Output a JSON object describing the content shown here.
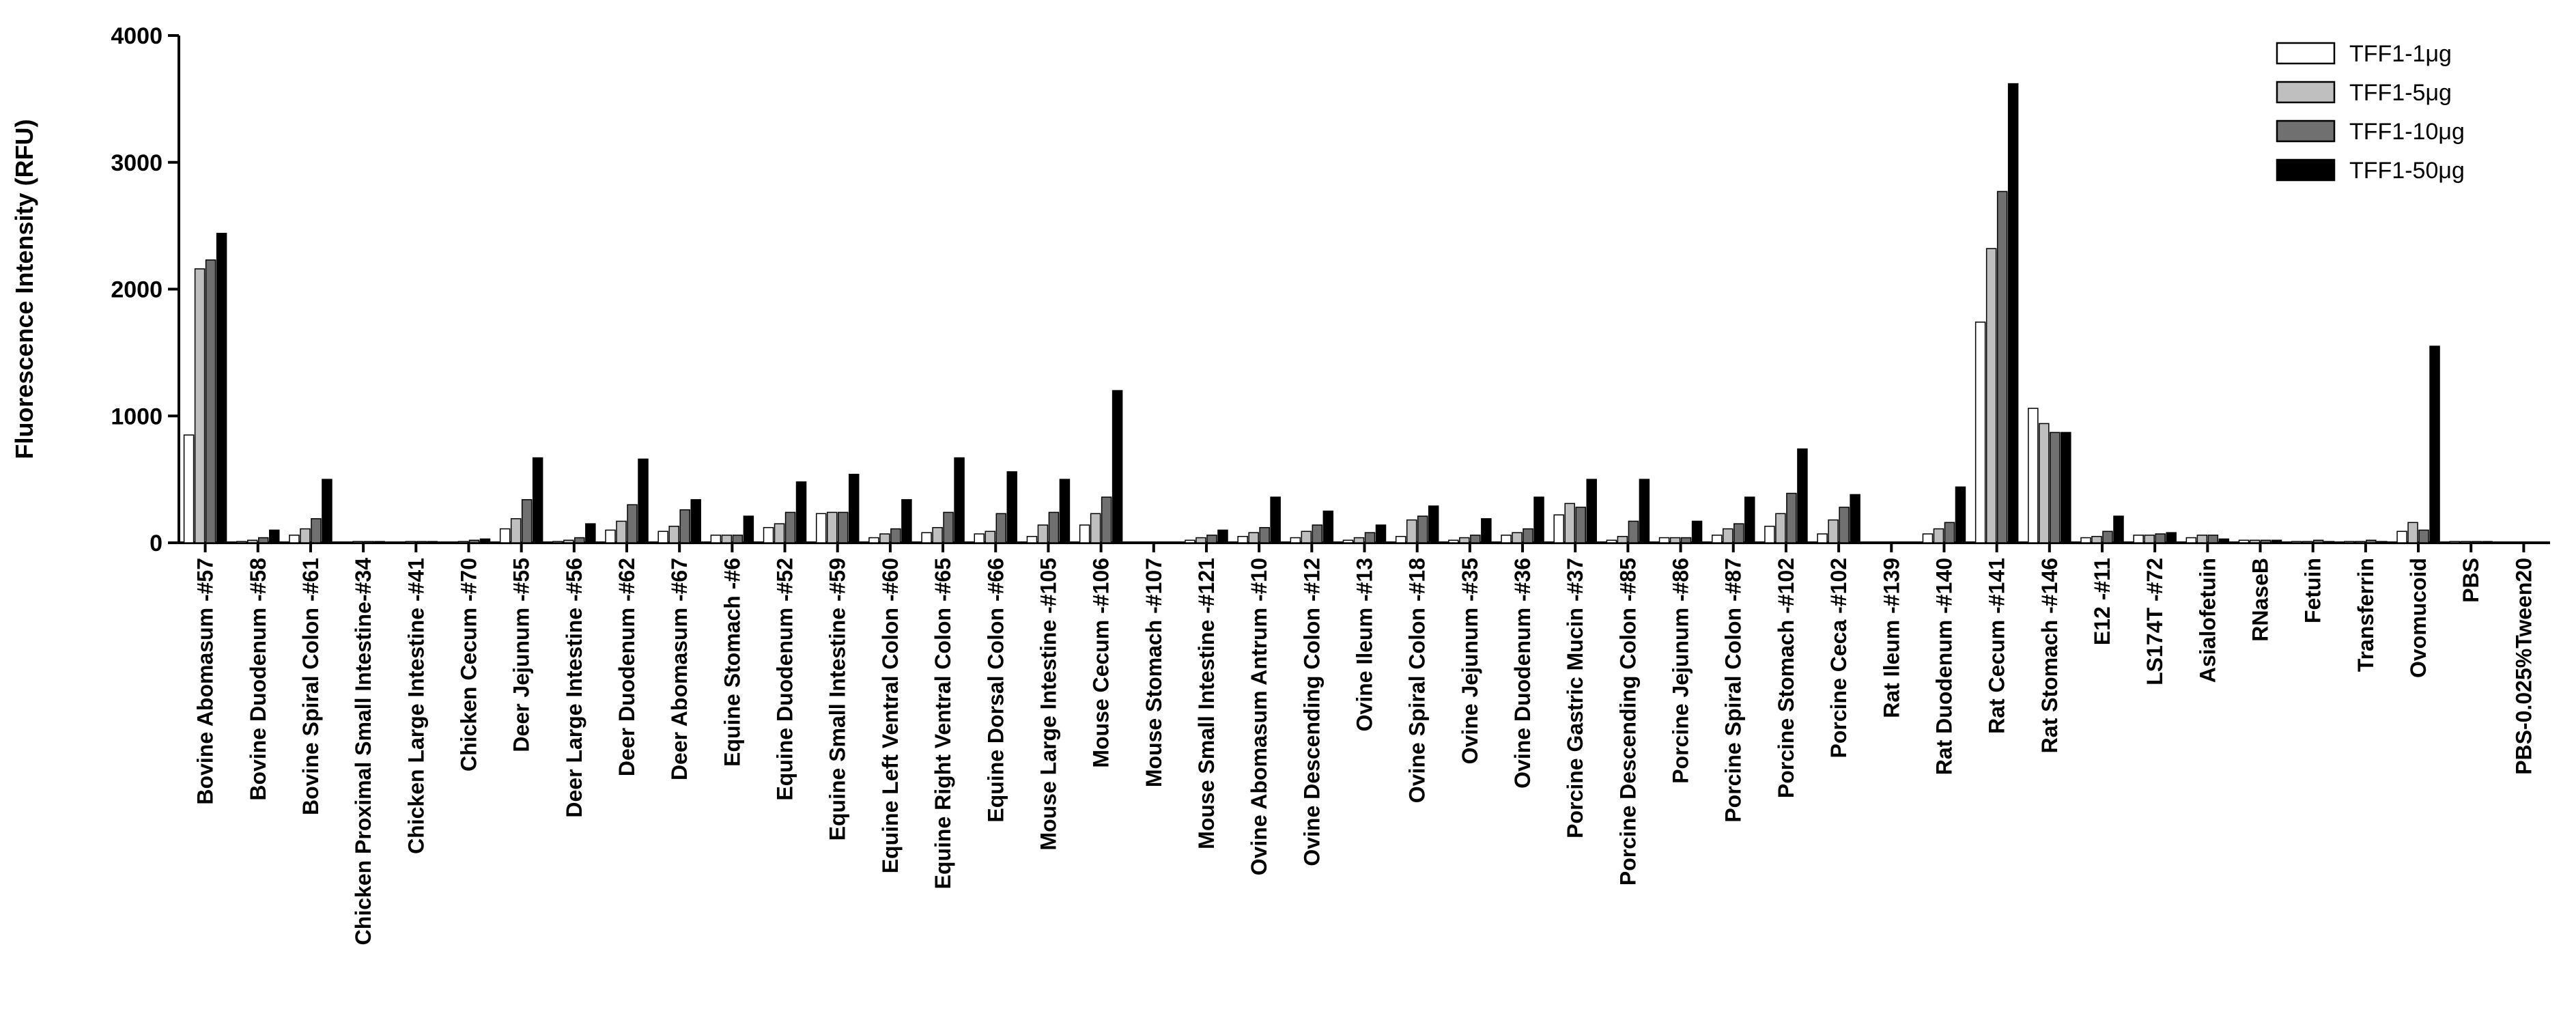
{
  "chart_data": {
    "type": "bar",
    "title": "",
    "xlabel": "",
    "ylabel": "Fluorescence Intensity (RFU)",
    "ylim": [
      0,
      4000
    ],
    "yticks": [
      0,
      1000,
      2000,
      3000,
      4000
    ],
    "grid": false,
    "legend_position": "top-right",
    "categories": [
      "Bovine Abomasum -#57",
      "Bovine Duodenum -#58",
      "Bovine Spiral Colon -#61",
      "Chicken Proximal Small Intestine-#34",
      "Chicken Large Intestine -#41",
      "Chicken Cecum -#70",
      "Deer Jejunum -#55",
      "Deer Large Intestine -#56",
      "Deer Duodenum -#62",
      "Deer Abomasum -#67",
      "Equine Stomach -#6",
      "Equine Duodenum -#52",
      "Equine Small Intestine -#59",
      "Equine Left Ventral Colon -#60",
      "Equine Right Ventral Colon -#65",
      "Equine Dorsal Colon -#66",
      "Mouse Large Intestine -#105",
      "Mouse Cecum -#106",
      "Mouse Stomach -#107",
      "Mouse Small Intestine -#121",
      "Ovine Abomasum Antrum -#10",
      "Ovine Descending Colon -#12",
      "Ovine Ileum -#13",
      "Ovine Spiral Colon -#18",
      "Ovine Jejunum -#35",
      "Ovine Duodenum -#36",
      "Porcine Gastric Mucin -#37",
      "Porcine Descending Colon -#85",
      "Porcine Jejunum -#86",
      "Porcine Spiral Colon -#87",
      "Porcine Stomach -#102",
      "Porcine Ceca -#102",
      "Rat Ileum -#139",
      "Rat Duodenum -#140",
      "Rat Cecum -#141",
      "Rat Stomach -#146",
      "E12 -#11",
      "LS174T -#72",
      "Asialofetuin",
      "RNaseB",
      "Fetuin",
      "Transferrin",
      "Ovomucoid",
      "PBS",
      "PBS-0.025%Tween20"
    ],
    "series": [
      {
        "name": "TFF1-1μg",
        "color": "#ffffff",
        "values": [
          850,
          10,
          60,
          5,
          5,
          5,
          110,
          10,
          100,
          90,
          60,
          120,
          230,
          40,
          80,
          70,
          50,
          140,
          0,
          20,
          50,
          40,
          20,
          50,
          20,
          60,
          220,
          20,
          40,
          60,
          130,
          70,
          0,
          70,
          1740,
          1060,
          40,
          60,
          40,
          20,
          10,
          10,
          90,
          10,
          0
        ]
      },
      {
        "name": "TFF1-5μg",
        "color": "#bfbfbf",
        "values": [
          2160,
          20,
          110,
          10,
          10,
          10,
          190,
          20,
          170,
          130,
          60,
          150,
          240,
          70,
          120,
          90,
          140,
          230,
          0,
          40,
          80,
          90,
          40,
          180,
          40,
          80,
          310,
          50,
          40,
          110,
          230,
          180,
          0,
          110,
          2320,
          940,
          50,
          60,
          60,
          20,
          10,
          10,
          160,
          10,
          0
        ]
      },
      {
        "name": "TFF1-10μg",
        "color": "#707070",
        "values": [
          2230,
          40,
          190,
          10,
          10,
          20,
          340,
          40,
          300,
          260,
          60,
          240,
          240,
          110,
          240,
          230,
          240,
          360,
          0,
          60,
          120,
          140,
          80,
          210,
          60,
          110,
          280,
          170,
          40,
          150,
          390,
          280,
          0,
          160,
          2770,
          870,
          90,
          70,
          60,
          20,
          20,
          20,
          100,
          10,
          0
        ]
      },
      {
        "name": "TFF1-50μg",
        "color": "#000000",
        "values": [
          2440,
          100,
          500,
          10,
          10,
          30,
          670,
          150,
          660,
          340,
          210,
          480,
          540,
          340,
          670,
          560,
          500,
          1200,
          0,
          100,
          360,
          250,
          140,
          290,
          190,
          360,
          500,
          500,
          170,
          360,
          740,
          380,
          0,
          440,
          3620,
          870,
          210,
          80,
          30,
          20,
          10,
          10,
          1550,
          10,
          0
        ]
      }
    ]
  }
}
